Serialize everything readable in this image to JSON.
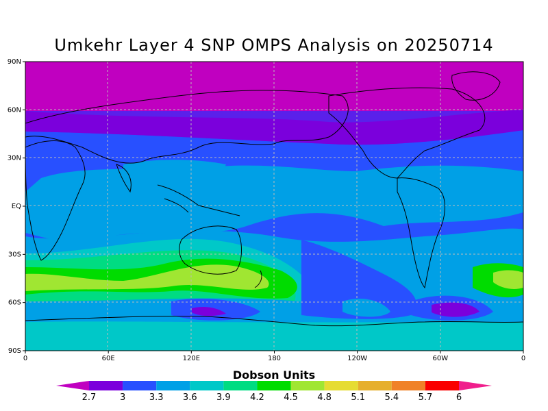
{
  "title": "Umkehr Layer 4 SNP OMPS Analysis on 20250714",
  "colorbar": {
    "title": "Dobson Units",
    "levels": [
      "2.7",
      "3",
      "3.3",
      "3.6",
      "3.9",
      "4.2",
      "4.5",
      "4.8",
      "5.1",
      "5.4",
      "5.7",
      "6"
    ],
    "colors": [
      "#c000c0",
      "#7b00dc",
      "#2850ff",
      "#00a0e6",
      "#00c8c8",
      "#00dc82",
      "#00dc00",
      "#a0e632",
      "#e6dc32",
      "#e6af2d",
      "#f08228",
      "#fa0000",
      "#f01e8c"
    ]
  },
  "map": {
    "lat_labels": [
      "90N",
      "60N",
      "30N",
      "EQ",
      "30S",
      "60S",
      "90S"
    ],
    "lon_labels": [
      "0",
      "60E",
      "120E",
      "180",
      "120W",
      "60W",
      "0"
    ]
  }
}
